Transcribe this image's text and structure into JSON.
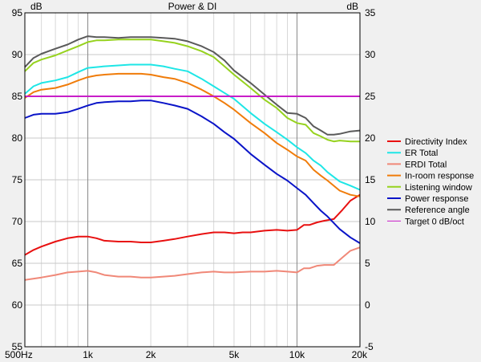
{
  "chart_data": {
    "type": "line",
    "title": "Power & DI",
    "x_scale": "log",
    "xlim": [
      500,
      20000
    ],
    "ylim": [
      55,
      95
    ],
    "y2lim": [
      -5,
      35
    ],
    "yunit": "dB",
    "y2unit": "dB",
    "grid": true,
    "legend_position": "right",
    "x_ticks": [
      {
        "value": 500,
        "label": "500Hz"
      },
      {
        "value": 1000,
        "label": "1k"
      },
      {
        "value": 2000,
        "label": "2k"
      },
      {
        "value": 5000,
        "label": "5k"
      },
      {
        "value": 10000,
        "label": "10k"
      },
      {
        "value": 20000,
        "label": "20k"
      }
    ],
    "x_major_grid": [
      1000,
      10000
    ],
    "x_minor_grid": [
      600,
      700,
      800,
      900,
      2000,
      3000,
      4000,
      5000,
      6000,
      7000,
      8000,
      9000
    ],
    "y_ticks": [
      {
        "value": 55,
        "label": "55"
      },
      {
        "value": 60,
        "label": "60"
      },
      {
        "value": 65,
        "label": "65"
      },
      {
        "value": 70,
        "label": "70"
      },
      {
        "value": 75,
        "label": "75"
      },
      {
        "value": 80,
        "label": "80"
      },
      {
        "value": 85,
        "label": "85"
      },
      {
        "value": 90,
        "label": "90"
      },
      {
        "value": 95,
        "label": "95"
      }
    ],
    "y2_ticks": [
      {
        "value": -5,
        "label": "-5"
      },
      {
        "value": 0,
        "label": "0"
      },
      {
        "value": 5,
        "label": "5"
      },
      {
        "value": 10,
        "label": "10"
      },
      {
        "value": 15,
        "label": "15"
      },
      {
        "value": 20,
        "label": "20"
      },
      {
        "value": 25,
        "label": "25"
      },
      {
        "value": 30,
        "label": "30"
      },
      {
        "value": 35,
        "label": "35"
      }
    ],
    "series": [
      {
        "name": "Directivity Index",
        "color": "#e81010",
        "axis": "y2",
        "x": [
          500,
          550,
          600,
          700,
          800,
          900,
          1000,
          1100,
          1200,
          1400,
          1600,
          1800,
          2000,
          2300,
          2600,
          3000,
          3500,
          4000,
          4500,
          5000,
          5500,
          6000,
          7000,
          8000,
          9000,
          10000,
          10800,
          11500,
          12500,
          13500,
          15000,
          16500,
          18000,
          20000
        ],
        "y": [
          6,
          6.6,
          7,
          7.6,
          8,
          8.2,
          8.2,
          8.0,
          7.7,
          7.6,
          7.6,
          7.5,
          7.5,
          7.7,
          7.9,
          8.2,
          8.5,
          8.7,
          8.7,
          8.6,
          8.7,
          8.7,
          8.9,
          9.0,
          8.9,
          9.0,
          9.6,
          9.6,
          9.9,
          10.1,
          10.3,
          11.4,
          12.5,
          13.2
        ]
      },
      {
        "name": "ER Total",
        "color": "#1ee6e6",
        "axis": "y",
        "x": [
          500,
          550,
          600,
          700,
          800,
          900,
          1000,
          1100,
          1200,
          1400,
          1600,
          1800,
          2000,
          2300,
          2600,
          3000,
          3500,
          4000,
          4500,
          5000,
          6000,
          7000,
          8000,
          9000,
          10000,
          11000,
          12000,
          13000,
          14000,
          16000,
          18000,
          20000
        ],
        "y": [
          85.3,
          86.2,
          86.6,
          86.9,
          87.3,
          87.9,
          88.4,
          88.5,
          88.6,
          88.7,
          88.8,
          88.8,
          88.8,
          88.6,
          88.3,
          88.0,
          87.1,
          86.2,
          85.4,
          84.7,
          83.0,
          81.7,
          80.7,
          79.8,
          78.9,
          78.2,
          77.3,
          76.7,
          75.9,
          74.8,
          74.3,
          73.8
        ]
      },
      {
        "name": "ERDI Total",
        "color": "#f08878",
        "axis": "y2",
        "x": [
          500,
          600,
          700,
          800,
          900,
          1000,
          1100,
          1200,
          1400,
          1600,
          1800,
          2000,
          2300,
          2600,
          3000,
          3500,
          4000,
          4500,
          5000,
          6000,
          7000,
          8000,
          9000,
          10000,
          10800,
          11500,
          12500,
          13500,
          15000,
          16500,
          18000,
          20000
        ],
        "y": [
          3.0,
          3.3,
          3.6,
          3.9,
          4.0,
          4.1,
          3.9,
          3.6,
          3.4,
          3.4,
          3.3,
          3.3,
          3.4,
          3.5,
          3.7,
          3.9,
          4.0,
          3.9,
          3.9,
          4.0,
          4.0,
          4.1,
          4.0,
          3.9,
          4.4,
          4.4,
          4.7,
          4.8,
          4.8,
          5.7,
          6.5,
          6.9
        ]
      },
      {
        "name": "In-room response",
        "color": "#f07c0a",
        "axis": "y",
        "x": [
          500,
          550,
          600,
          700,
          800,
          900,
          1000,
          1100,
          1200,
          1400,
          1600,
          1800,
          2000,
          2300,
          2600,
          3000,
          3500,
          4000,
          4500,
          5000,
          6000,
          7000,
          8000,
          9000,
          10000,
          11000,
          12000,
          13000,
          14000,
          16000,
          18000,
          20000
        ],
        "y": [
          84.8,
          85.5,
          85.8,
          86.0,
          86.4,
          86.9,
          87.3,
          87.5,
          87.6,
          87.7,
          87.7,
          87.7,
          87.6,
          87.3,
          87.1,
          86.6,
          85.8,
          85.0,
          84.2,
          83.4,
          81.8,
          80.6,
          79.4,
          78.6,
          77.8,
          77.3,
          76.2,
          75.5,
          74.9,
          73.7,
          73.2,
          73.0
        ]
      },
      {
        "name": "Listening window",
        "color": "#96d21e",
        "axis": "y",
        "x": [
          500,
          550,
          600,
          700,
          800,
          900,
          1000,
          1100,
          1200,
          1400,
          1600,
          1800,
          2000,
          2300,
          2600,
          3000,
          3500,
          4000,
          4500,
          5000,
          6000,
          7000,
          8000,
          9000,
          10000,
          11000,
          12000,
          13000,
          14000,
          15000,
          16000,
          18000,
          20000
        ],
        "y": [
          88.0,
          89.0,
          89.4,
          89.9,
          90.5,
          91.0,
          91.5,
          91.7,
          91.7,
          91.8,
          91.8,
          91.8,
          91.8,
          91.6,
          91.4,
          91.0,
          90.4,
          89.7,
          88.6,
          87.6,
          86.0,
          84.6,
          83.6,
          82.4,
          81.8,
          81.6,
          80.6,
          80.2,
          79.8,
          79.6,
          79.7,
          79.6,
          79.6
        ]
      },
      {
        "name": "Power response",
        "color": "#0a14c8",
        "axis": "y",
        "x": [
          500,
          550,
          600,
          700,
          800,
          900,
          1000,
          1100,
          1200,
          1400,
          1600,
          1800,
          2000,
          2300,
          2600,
          3000,
          3500,
          4000,
          4500,
          5000,
          6000,
          7000,
          8000,
          9000,
          10000,
          11000,
          12000,
          13000,
          14000,
          16000,
          18000,
          20000
        ],
        "y": [
          82.4,
          82.8,
          82.9,
          82.9,
          83.1,
          83.5,
          83.9,
          84.2,
          84.3,
          84.4,
          84.4,
          84.5,
          84.5,
          84.2,
          83.9,
          83.5,
          82.6,
          81.7,
          80.7,
          79.9,
          78.1,
          76.8,
          75.7,
          74.9,
          74.0,
          73.2,
          72.2,
          71.3,
          70.6,
          69.1,
          68.1,
          67.4
        ]
      },
      {
        "name": "Reference angle",
        "color": "#5a5a5a",
        "axis": "y",
        "x": [
          500,
          550,
          600,
          700,
          800,
          900,
          1000,
          1100,
          1200,
          1400,
          1600,
          1800,
          2000,
          2300,
          2600,
          3000,
          3500,
          4000,
          4500,
          5000,
          6000,
          7000,
          8000,
          9000,
          10000,
          11000,
          12000,
          13000,
          14000,
          15000,
          16000,
          18000,
          20000
        ],
        "y": [
          88.5,
          89.6,
          90.1,
          90.7,
          91.2,
          91.8,
          92.2,
          92.1,
          92.1,
          92.0,
          92.1,
          92.1,
          92.1,
          92.0,
          91.9,
          91.6,
          91.0,
          90.3,
          89.3,
          88.1,
          86.6,
          85.2,
          84.0,
          83.0,
          82.9,
          82.4,
          81.4,
          80.9,
          80.4,
          80.4,
          80.5,
          80.8,
          80.9
        ]
      },
      {
        "name": "Target 0 dB/oct",
        "color": "#c81ec8",
        "axis": "y",
        "x": [
          500,
          20000
        ],
        "y": [
          85,
          85
        ]
      }
    ]
  }
}
